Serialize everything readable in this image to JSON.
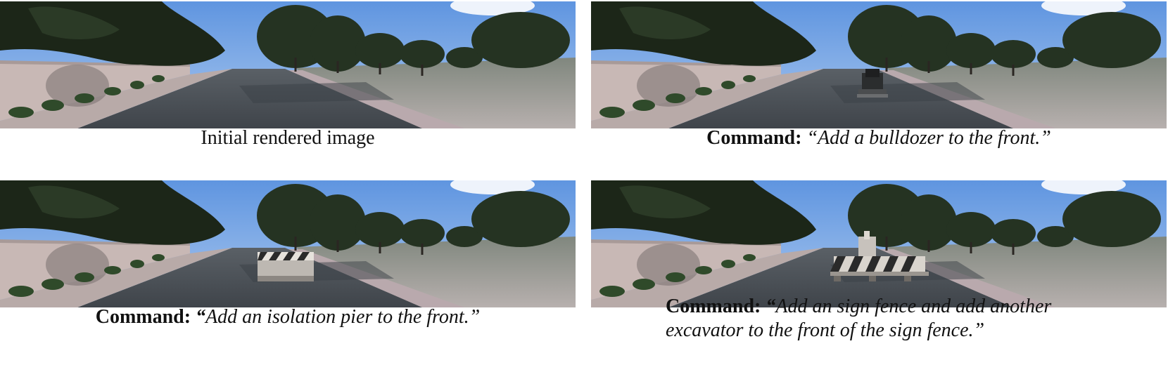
{
  "panels": [
    {
      "caption_plain": "Initial rendered image"
    },
    {
      "label": "Command:",
      "text": "“Add a bulldozer to the front.”",
      "inserted_object": "bulldozer"
    },
    {
      "label": "Command:",
      "open_quote": "“",
      "text": "Add an isolation pier to the front.”",
      "inserted_object": "isolation-pier"
    },
    {
      "label": "Command:",
      "open_quote": "“",
      "text_line1": "Add an sign fence and add another",
      "text_line2": "excavator to the front of the sign fence.”",
      "inserted_object": "sign-fence-and-excavator"
    }
  ],
  "colors": {
    "sky": "#6fa3e8",
    "road": "#4a4f55",
    "wall": "#c9b9b6",
    "trees": "#1f2a1c",
    "grass": "#6f776c"
  }
}
